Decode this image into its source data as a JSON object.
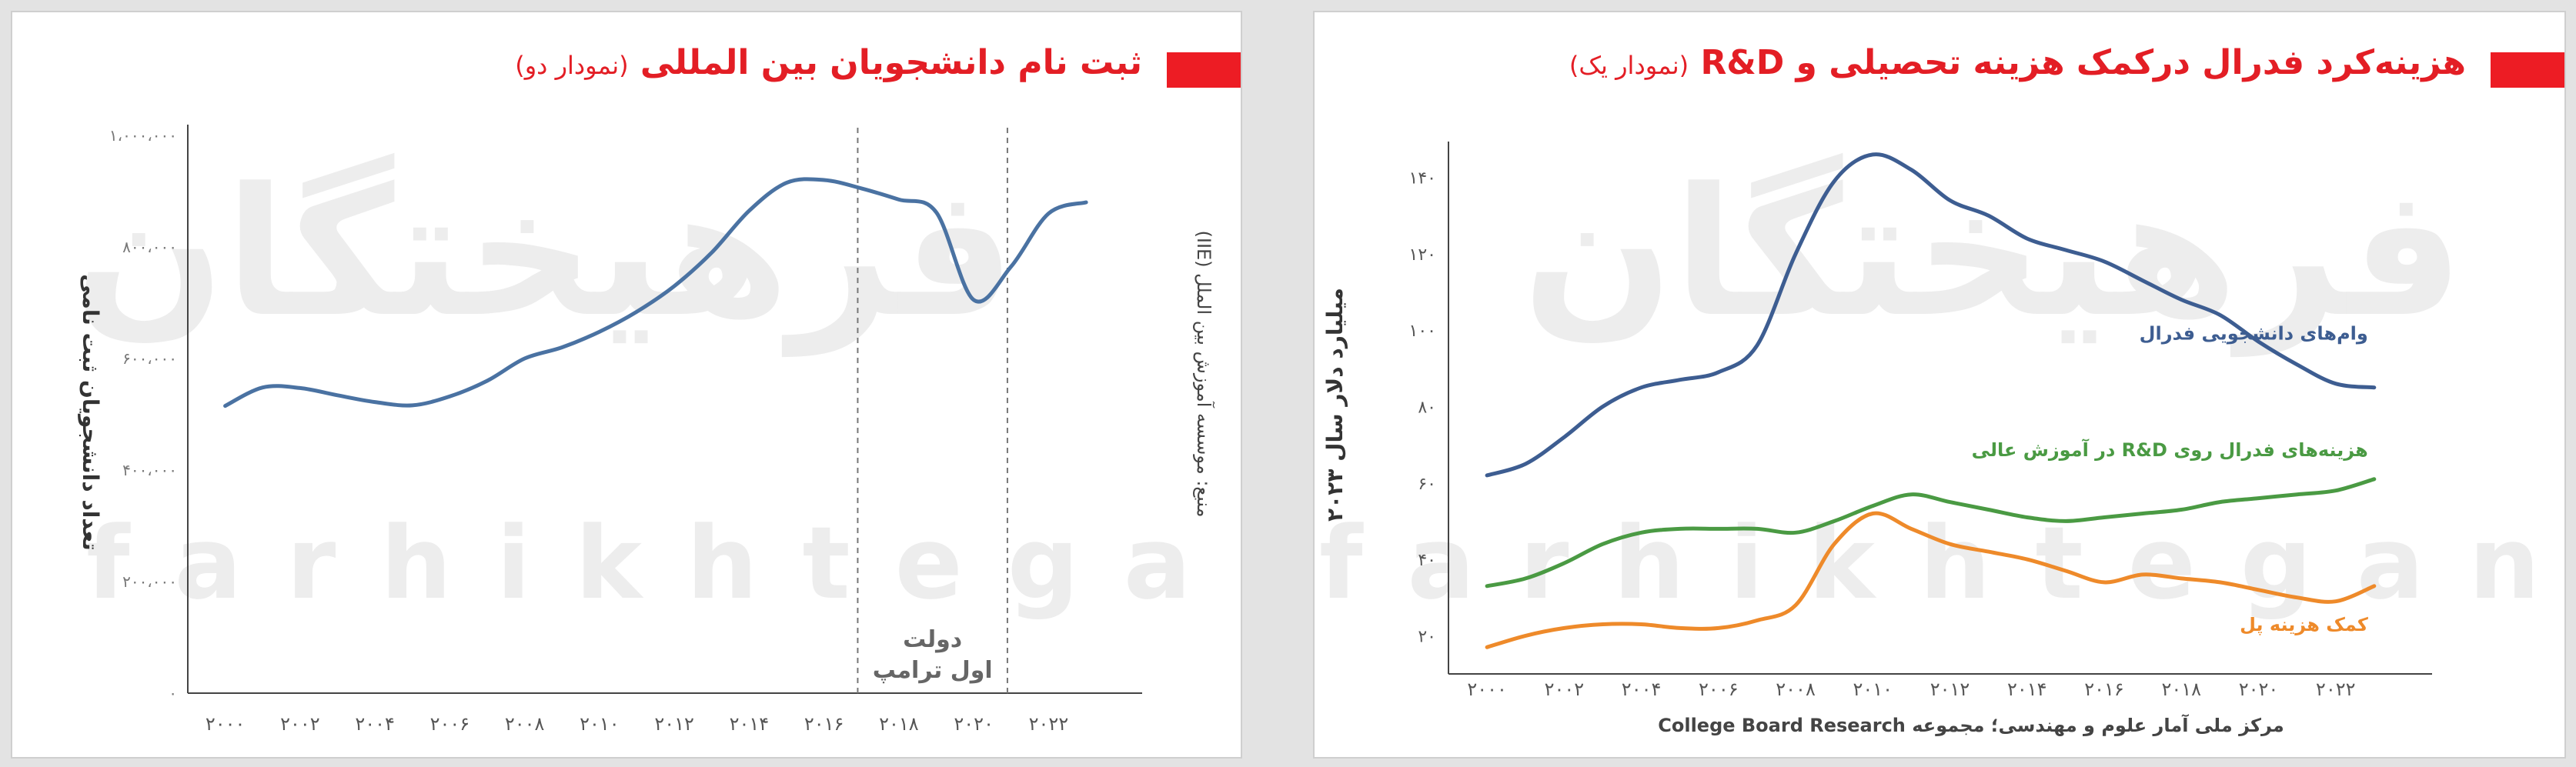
{
  "watermark": {
    "persian": "فرهیختگان",
    "latin": "farhikhtegan"
  },
  "chart_data": [
    {
      "type": "line",
      "title": "ثبت نام دانشجویان بین المللی",
      "subtitle": "(نمودار دو)",
      "xlabel": "",
      "ylabel": "تعداد دانشجویان ثبت نامی",
      "source": "منبع: موسسه آموزش بین الملل (IIE)",
      "xlim": [
        1999,
        2024.5
      ],
      "ylim": [
        0,
        1000000
      ],
      "x_ticks": [
        2000,
        2002,
        2004,
        2006,
        2008,
        2010,
        2012,
        2014,
        2016,
        2018,
        2020,
        2022
      ],
      "x_tick_labels": [
        "۲۰۰۰",
        "۲۰۰۲",
        "۲۰۰۴",
        "۲۰۰۶",
        "۲۰۰۸",
        "۲۰۱۰",
        "۲۰۱۲",
        "۲۰۱۴",
        "۲۰۱۶",
        "۲۰۱۸",
        "۲۰۲۰",
        "۲۰۲۲"
      ],
      "y_ticks": [
        0,
        200000,
        400000,
        600000,
        800000,
        1000000
      ],
      "y_tick_labels": [
        "۰",
        "۲۰۰،۰۰۰",
        "۴۰۰،۰۰۰",
        "۶۰۰،۰۰۰",
        "۸۰۰،۰۰۰",
        "۱،۰۰۰،۰۰۰"
      ],
      "grid": false,
      "color": "#4a72a2",
      "series": [
        {
          "x": [
            2000,
            2001,
            2002,
            2003,
            2004,
            2005,
            2006,
            2007,
            2008,
            2009,
            2010,
            2011,
            2012,
            2013,
            2014,
            2015,
            2016,
            2017,
            2018,
            2019,
            2020,
            2021,
            2022,
            2023
          ],
          "values": [
            515000,
            548000,
            547000,
            534000,
            522000,
            516000,
            532000,
            560000,
            600000,
            620000,
            648000,
            684000,
            730000,
            790000,
            865000,
            915000,
            920000,
            905000,
            885000,
            862000,
            705000,
            765000,
            860000,
            880000
          ]
        }
      ],
      "annotations": [
        {
          "type": "vline",
          "x": 2016.9
        },
        {
          "type": "vline",
          "x": 2020.9
        },
        {
          "type": "text",
          "lines": [
            "دولت",
            "اول ترامپ"
          ]
        }
      ]
    },
    {
      "type": "line",
      "title": "هزینه‌کرد فدرال درکمک هزینه تحصیلی و R&D",
      "subtitle": "(نمودار یک)",
      "xlabel": "",
      "ylabel": "میلیارد دلار سال ۲۰۲۳",
      "source": "مرکز ملی آمار علوم و مهندسی؛ مجموعه College Board Research",
      "xlim": [
        1999,
        2024.5
      ],
      "ylim": [
        10,
        150
      ],
      "x_ticks": [
        2000,
        2002,
        2004,
        2006,
        2008,
        2010,
        2012,
        2014,
        2016,
        2018,
        2020,
        2022
      ],
      "x_tick_labels": [
        "۲۰۰۰",
        "۲۰۰۲",
        "۲۰۰۴",
        "۲۰۰۶",
        "۲۰۰۸",
        "۲۰۱۰",
        "۲۰۱۲",
        "۲۰۱۴",
        "۲۰۱۶",
        "۲۰۱۸",
        "۲۰۲۰",
        "۲۰۲۲"
      ],
      "y_ticks": [
        20,
        40,
        60,
        80,
        100,
        120,
        140
      ],
      "y_tick_labels": [
        "۲۰",
        "۴۰",
        "۶۰",
        "۸۰",
        "۱۰۰",
        "۱۲۰",
        "۱۴۰"
      ],
      "grid": false,
      "series": [
        {
          "name": "وام‌های دانشجویی فدرال",
          "color": "#3d5d91",
          "x": [
            2000,
            2001,
            2002,
            2003,
            2004,
            2005,
            2006,
            2007,
            2008,
            2009,
            2010,
            2011,
            2012,
            2013,
            2014,
            2015,
            2016,
            2017,
            2018,
            2019,
            2020,
            2021,
            2022,
            2023
          ],
          "values": [
            62,
            65,
            72,
            80,
            85,
            87,
            89,
            96,
            120,
            139,
            146,
            142,
            134,
            130,
            124,
            121,
            118,
            113,
            108,
            104,
            97,
            91,
            86,
            85
          ]
        },
        {
          "name": "هزینه‌های فدرال روی R&D در آموزش عالی",
          "color": "#4a9a43",
          "x": [
            2000,
            2001,
            2002,
            2003,
            2004,
            2005,
            2006,
            2007,
            2008,
            2009,
            2010,
            2011,
            2012,
            2013,
            2014,
            2015,
            2016,
            2017,
            2018,
            2019,
            2020,
            2021,
            2022,
            2023
          ],
          "values": [
            33,
            35,
            39,
            44,
            47,
            48,
            48,
            48,
            47,
            50,
            54,
            57,
            55,
            53,
            51,
            50,
            51,
            52,
            53,
            55,
            56,
            57,
            58,
            61
          ]
        },
        {
          "name": "کمک هزینه پل",
          "color": "#ee8a2a",
          "x": [
            2000,
            2001,
            2002,
            2003,
            2004,
            2005,
            2006,
            2007,
            2008,
            2009,
            2010,
            2011,
            2012,
            2013,
            2014,
            2015,
            2016,
            2017,
            2018,
            2019,
            2020,
            2021,
            2022,
            2023
          ],
          "values": [
            17,
            20,
            22,
            23,
            23,
            22,
            22,
            24,
            28,
            44,
            52,
            48,
            44,
            42,
            40,
            37,
            34,
            36,
            35,
            34,
            32,
            30,
            29,
            33
          ]
        }
      ],
      "series_label_positions": [
        "near-end-above",
        "near-end-above",
        "near-end-below"
      ]
    }
  ]
}
